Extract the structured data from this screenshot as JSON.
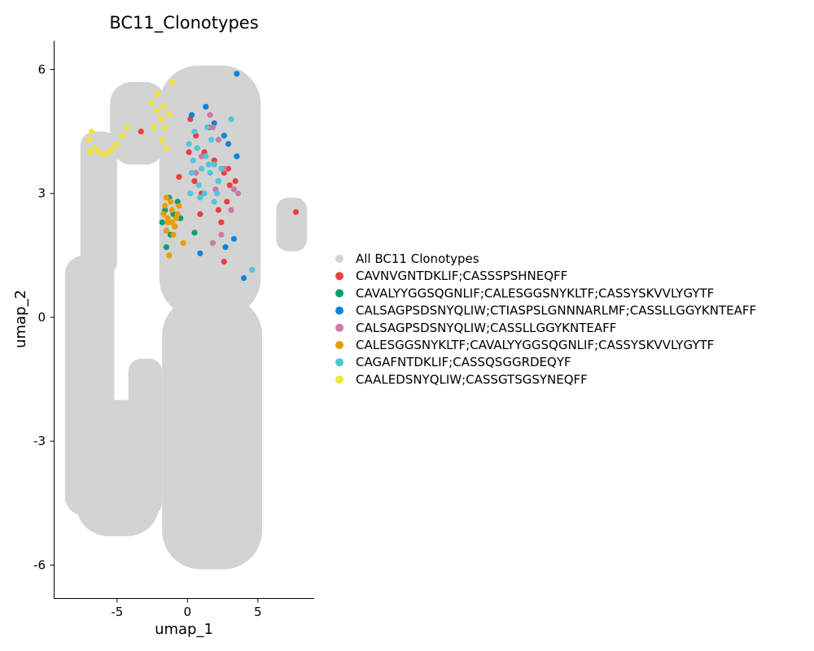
{
  "chart_data": {
    "type": "scatter",
    "title": "BC11_Clonotypes",
    "xlabel": "umap_1",
    "ylabel": "umap_2",
    "xlim": [
      -9.5,
      9.0
    ],
    "ylim": [
      -6.8,
      6.7
    ],
    "x_ticks": [
      -5,
      0,
      5
    ],
    "y_ticks": [
      6,
      3,
      0,
      -3,
      -6
    ],
    "x_tick_labels": [
      "-5",
      "0",
      "5"
    ],
    "y_tick_labels": [
      "6",
      "3",
      "0",
      "-3",
      "-6"
    ],
    "grid": false,
    "legend_position": "right",
    "background_series": {
      "name": "All BC11 Clonotypes",
      "color": "#D3D3D3",
      "regions": [
        {
          "x": [
            -8.7,
            -5.2
          ],
          "y": [
            -4.8,
            1.5
          ]
        },
        {
          "x": [
            -7.6,
            -5.0
          ],
          "y": [
            1.0,
            4.5
          ]
        },
        {
          "x": [
            -5.5,
            -1.5
          ],
          "y": [
            3.7,
            5.7
          ]
        },
        {
          "x": [
            -2.0,
            5.2
          ],
          "y": [
            0.0,
            6.1
          ]
        },
        {
          "x": [
            -1.8,
            5.3
          ],
          "y": [
            -6.1,
            0.5
          ]
        },
        {
          "x": [
            -7.9,
            -2.0
          ],
          "y": [
            -5.3,
            -2.0
          ]
        },
        {
          "x": [
            -4.2,
            -1.8
          ],
          "y": [
            -4.8,
            -1.0
          ]
        },
        {
          "x": [
            6.3,
            8.5
          ],
          "y": [
            1.6,
            2.9
          ]
        }
      ]
    },
    "series": [
      {
        "name": "CAVNVGNTDKLIF;CASSSPSHNEQFF",
        "color": "#E8403F",
        "x": [
          0.2,
          0.6,
          1.2,
          1.9,
          2.6,
          3.0,
          2.8,
          0.5,
          -0.6,
          0.9,
          2.2,
          3.4,
          1.5,
          0.1,
          2.9,
          1.0,
          2.4,
          7.7,
          -3.3,
          2.6
        ],
        "y": [
          4.8,
          4.4,
          4.0,
          3.8,
          3.5,
          3.2,
          2.8,
          3.3,
          3.4,
          2.5,
          2.6,
          3.3,
          4.6,
          4.0,
          3.6,
          3.0,
          2.3,
          2.55,
          4.5,
          1.35
        ]
      },
      {
        "name": "CAVALYYGGSQGNLIF;CALESGGSNYKLTF;CASSYSKVVLYGYTF",
        "color": "#009E73",
        "x": [
          -1.8,
          -1.5,
          -1.2,
          -0.9,
          -0.5,
          -1.6,
          -1.3,
          -1.0,
          0.5,
          -1.5,
          -0.7
        ],
        "y": [
          2.3,
          2.1,
          2.0,
          2.2,
          2.4,
          2.6,
          2.9,
          2.5,
          2.05,
          1.7,
          2.8
        ]
      },
      {
        "name": "CALSAGPSDSNYQLIW;CTIASPSLGNNNARLMF;CASSLLGGYKNTEAFF",
        "color": "#0B84D8",
        "x": [
          3.5,
          1.3,
          2.6,
          0.3,
          2.9,
          1.9,
          3.5,
          2.2,
          0.9,
          4.0,
          2.7,
          3.3
        ],
        "y": [
          5.9,
          5.1,
          4.4,
          4.9,
          4.2,
          4.7,
          3.9,
          3.3,
          1.55,
          0.95,
          1.7,
          1.9
        ]
      },
      {
        "name": "CALSAGPSDSNYQLIW;CASSLLGGYKNTEAFF",
        "color": "#CC79A7",
        "x": [
          1.6,
          2.2,
          3.3,
          2.6,
          1.0,
          2.4,
          3.1,
          1.8,
          0.6,
          2.0,
          3.6,
          1.8
        ],
        "y": [
          4.9,
          4.3,
          3.1,
          3.6,
          3.9,
          2.0,
          2.6,
          4.6,
          3.5,
          3.1,
          3.0,
          1.8
        ]
      },
      {
        "name": "CALESGGSNYKLTF;CAVALYYGGSQGNLIF;CASSYSKVVLYGYTF",
        "color": "#E69F00",
        "x": [
          -1.7,
          -1.4,
          -1.1,
          -0.8,
          -1.5,
          -1.2,
          -0.9,
          -1.6,
          -1.3,
          -0.7,
          -1.0,
          -1.4,
          -1.1,
          -0.6,
          -1.5,
          -0.3
        ],
        "y": [
          2.5,
          2.3,
          2.6,
          2.4,
          2.1,
          2.8,
          2.2,
          2.7,
          1.5,
          2.5,
          2.0,
          2.4,
          2.3,
          2.7,
          2.9,
          1.8
        ]
      },
      {
        "name": "CAGAFNTDKLIF;CASSQSGGRDEQYF",
        "color": "#4FC6DB",
        "x": [
          0.1,
          0.4,
          0.7,
          1.0,
          1.3,
          1.6,
          1.9,
          2.2,
          0.3,
          0.8,
          1.2,
          1.7,
          2.1,
          0.5,
          1.4,
          1.9,
          0.2,
          0.9,
          1.5,
          2.4,
          3.1,
          4.6
        ],
        "y": [
          4.2,
          3.8,
          4.1,
          3.6,
          3.9,
          3.5,
          3.7,
          3.3,
          3.5,
          3.2,
          3.0,
          4.3,
          3.0,
          4.5,
          4.6,
          2.8,
          3.0,
          2.9,
          3.7,
          3.6,
          4.8,
          1.15
        ]
      },
      {
        "name": "CAALEDSNYQLIW;CASSGTSGSYNEQFF",
        "color": "#EFE440",
        "x": [
          -7.0,
          -6.8,
          -6.6,
          -6.3,
          -5.9,
          -5.6,
          -5.3,
          -5.0,
          -4.6,
          -4.3,
          -2.2,
          -1.9,
          -1.6,
          -1.3,
          -2.6,
          -2.1,
          -1.7,
          -1.1,
          -1.8,
          -6.9,
          -2.4,
          -1.5
        ],
        "y": [
          4.3,
          4.5,
          4.1,
          4.0,
          3.95,
          4.0,
          4.1,
          4.2,
          4.4,
          4.6,
          5.0,
          4.8,
          4.6,
          4.9,
          5.2,
          5.4,
          5.1,
          5.7,
          4.3,
          4.0,
          4.6,
          4.1
        ]
      }
    ]
  }
}
